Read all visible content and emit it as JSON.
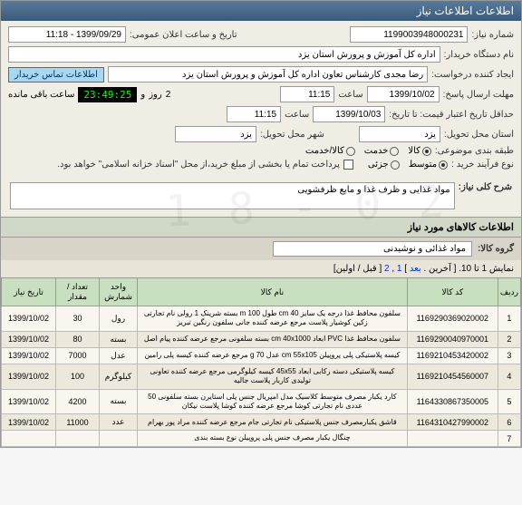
{
  "panel_title": "اطلاعات اطلاعات نیاز",
  "header": {
    "need_no_label": "شماره نیاز:",
    "need_no": "1199003948000231",
    "announce_label": "تاریخ و ساعت اعلان عمومی:",
    "announce_value": "1399/09/29 - 11:18",
    "buyer_label": "نام دستگاه خریدار:",
    "buyer_value": "اداره کل آموزش و پرورش استان یزد",
    "creator_label": "ایجاد کننده درخواست:",
    "creator_value": "رضا مجدی کارشناس تعاون اداره کل آموزش و پرورش استان یزد",
    "buyer_contact": "اطلاعات تماس خریدار",
    "deadline_label": "مهلت ارسال پاسخ:",
    "deadline_date": "1399/10/02",
    "time_label": "ساعت",
    "deadline_time": "11:15",
    "and_label": "و",
    "day_label": "روز",
    "days_left": "2",
    "timer": "23:49:25",
    "remaining_label": "ساعت باقی مانده",
    "min_valid_label": "حداقل تاریخ اعتبار قیمت: تا تاریخ:",
    "min_valid_date": "1399/10/03",
    "min_valid_time": "11:15",
    "province_label": "استان محل تحویل:",
    "province": "یزد",
    "city_label": "شهر محل تحویل:",
    "city": "یزد",
    "budget_label": "طبقه بندی موضوعی:",
    "budget_opts": {
      "a": "کالا",
      "b": "خدمت",
      "c": "کالا/خدمت"
    },
    "process_label": "نوع فرآیند خرید :",
    "process_opts": {
      "a": "متوسط",
      "b": "جزئی"
    },
    "note": "پرداخت تمام یا بخشی از مبلغ خرید،از محل \"اسناد خزانه اسلامی\" خواهد بود.",
    "checkbox_label": ""
  },
  "sections": {
    "short_desc_title": "شرح کلی نیاز:",
    "short_desc": "مواد غذایی و ظرف غذا و مایع ظرفشویی",
    "items_title": "اطلاعات کالاهای مورد نیاز",
    "group_label": "گروه کالا:",
    "group_value": "مواد غذائی و نوشیدنی"
  },
  "pager": {
    "text1": "نمایش 1 تا 10.",
    "text2": "[ آخرین . ",
    "next": "بعد",
    "sep": " ] ",
    "p1": "1",
    "comma": ", ",
    "p2": "2",
    "text3": " [ قبل / اولین]"
  },
  "table": {
    "headers": {
      "idx": "ردیف",
      "code": "کد کالا",
      "name": "نام کالا",
      "unit": "واحد شمارش",
      "qty": "تعداد / مقدار",
      "date": "تاریخ نیاز"
    },
    "rows": [
      {
        "idx": "1",
        "code": "1169290369020002",
        "name": "سلفون محافظ غذا درجه یک سایز cm 40 طول m 100 بسته شرینک 1 رولی نام تجارتی زکین کوشیار پلاست مرجع عرضه کننده جانی سلفون رنگین تبریز",
        "unit": "رول",
        "qty": "30",
        "date": "1399/10/02"
      },
      {
        "idx": "2",
        "code": "1169290040970001",
        "name": "سلفون محافظ غذا PVC ابعاد cm 40x1000 بسته سلفونی مرجع عرضه کننده پیام اصل",
        "unit": "بسته",
        "qty": "80",
        "date": "1399/10/02"
      },
      {
        "idx": "3",
        "code": "1169210453420002",
        "name": "کیسه پلاستیکی پلی پروپیلن cm 55x105 عدل g 70 مرجع عرضه کننده کیسه پلی رامین",
        "unit": "عدل",
        "qty": "7000",
        "date": "1399/10/02"
      },
      {
        "idx": "4",
        "code": "1169210454560007",
        "name": "کیسه پلاستیکی دسته رکابی ابعاد 45x55 کیسه کیلوگرمی مرجع عرضه کننده تعاونی تولیدی کاربار پلاست جالیه",
        "unit": "کیلوگرم",
        "qty": "100",
        "date": "1399/10/02"
      },
      {
        "idx": "5",
        "code": "1164330867350005",
        "name": "کارد یکبار مصرف متوسط کلاسیک مدل امپریال جنس پلی استایرن بسته سلفونی 50 عددی نام تجارتی کوشا مرجع عرضه کننده کوشا پلاست نیکان",
        "unit": "بسته",
        "qty": "4200",
        "date": "1399/10/02"
      },
      {
        "idx": "6",
        "code": "1164310427990002",
        "name": "قاشق یکبارمصرف جنس پلاستیکی نام تجارتی جام مرجع عرضه کننده مراد پور بهرام",
        "unit": "عدد",
        "qty": "11000",
        "date": "1399/10/02"
      },
      {
        "idx": "7",
        "code": "",
        "name": "چنگال یکبار مصرف جنس پلی پروپیلن نوع بسته بندی",
        "unit": "",
        "qty": "",
        "date": ""
      }
    ]
  },
  "colors": {
    "header_grad_top": "#5a7a9a",
    "header_grad_bot": "#3a5a7a",
    "form_bg": "#f0ede4",
    "section_bg": "#d0d8c8",
    "table_header_bg": "#c8e0c0",
    "row_odd": "#f8f6ee",
    "row_even": "#ece8dc",
    "timer_bg": "#000000",
    "timer_fg": "#00ff00",
    "contact_bg": "#a8d8f0"
  }
}
